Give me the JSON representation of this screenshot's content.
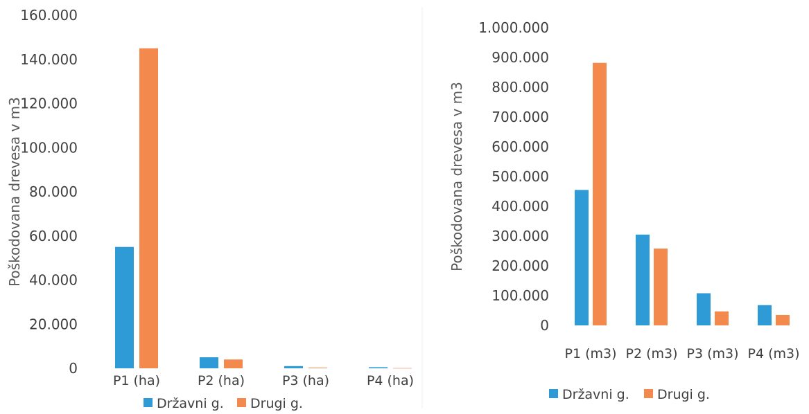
{
  "colors": {
    "series1": "#2e9bd6",
    "series2": "#f4894e"
  },
  "chart_data": [
    {
      "type": "bar",
      "title": "",
      "xlabel": "",
      "ylabel": "Poškodovana drevesa v m3",
      "ylim": [
        0,
        160000
      ],
      "y_ticks": [
        "0",
        "20.000",
        "40.000",
        "60.000",
        "80.000",
        "100.000",
        "120.000",
        "140.000",
        "160.000"
      ],
      "categories": [
        "P1 (ha)",
        "P2 (ha)",
        "P3 (ha)",
        "P4 (ha)"
      ],
      "series": [
        {
          "name": "Državni g.",
          "values": [
            55000,
            5000,
            1000,
            500
          ]
        },
        {
          "name": "Drugi g.",
          "values": [
            145000,
            4000,
            300,
            100
          ]
        }
      ],
      "legend": "bottom",
      "grid": false
    },
    {
      "type": "bar",
      "title": "",
      "xlabel": "",
      "ylabel": "Poškodovana drevesa v m3",
      "ylim": [
        0,
        1000000
      ],
      "y_ticks": [
        "0",
        "100.000",
        "200.000",
        "300.000",
        "400.000",
        "500.000",
        "600.000",
        "700.000",
        "800.000",
        "900.000",
        "1.000.000"
      ],
      "categories": [
        "P1 (m3)",
        "P2 (m3)",
        "P3 (m3)",
        "P4 (m3)"
      ],
      "series": [
        {
          "name": "Državni g.",
          "values": [
            455000,
            305000,
            108000,
            68000
          ]
        },
        {
          "name": "Drugi g.",
          "values": [
            882000,
            258000,
            47000,
            35000
          ]
        }
      ],
      "legend": "bottom",
      "grid": false
    }
  ]
}
